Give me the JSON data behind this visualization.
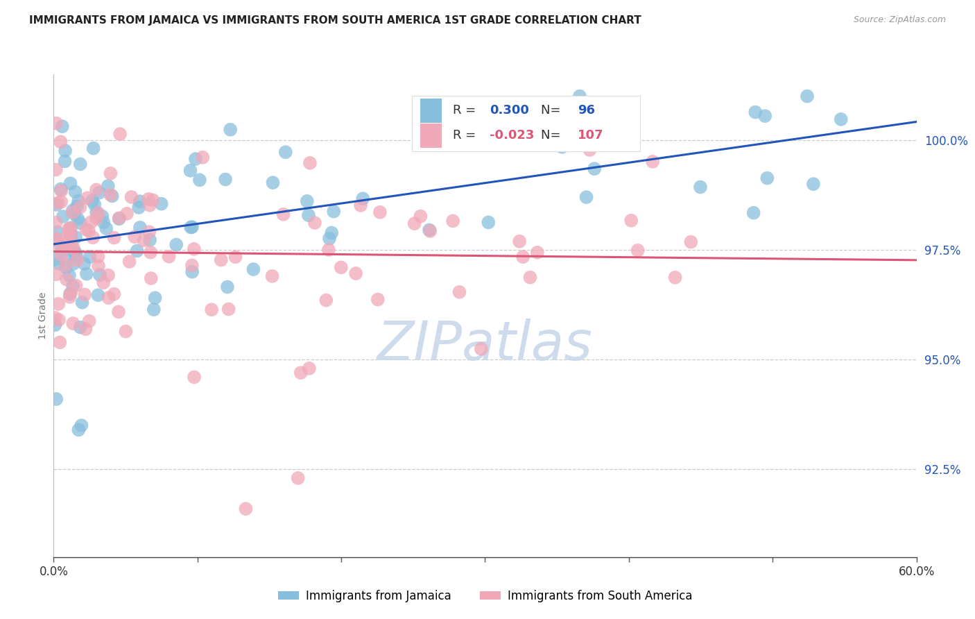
{
  "title": "IMMIGRANTS FROM JAMAICA VS IMMIGRANTS FROM SOUTH AMERICA 1ST GRADE CORRELATION CHART",
  "source": "Source: ZipAtlas.com",
  "ylabel": "1st Grade",
  "x_min": 0.0,
  "x_max": 60.0,
  "y_min": 90.5,
  "y_max": 101.5,
  "y_ticks": [
    92.5,
    95.0,
    97.5,
    100.0
  ],
  "y_tick_labels": [
    "92.5%",
    "95.0%",
    "97.5%",
    "100.0%"
  ],
  "legend_blue_R": "0.300",
  "legend_blue_N": "96",
  "legend_pink_R": "-0.023",
  "legend_pink_N": "107",
  "legend_label_blue": "Immigrants from Jamaica",
  "legend_label_pink": "Immigrants from South America",
  "blue_color": "#88BEDD",
  "pink_color": "#F0A8B8",
  "trend_blue_color": "#2255BB",
  "trend_pink_color": "#DD5575",
  "watermark_color": "#C8D8EA",
  "title_color": "#222222",
  "source_color": "#999999",
  "ylabel_color": "#777777",
  "ytick_color": "#2255BB",
  "grid_color": "#cccccc",
  "background": "#ffffff"
}
